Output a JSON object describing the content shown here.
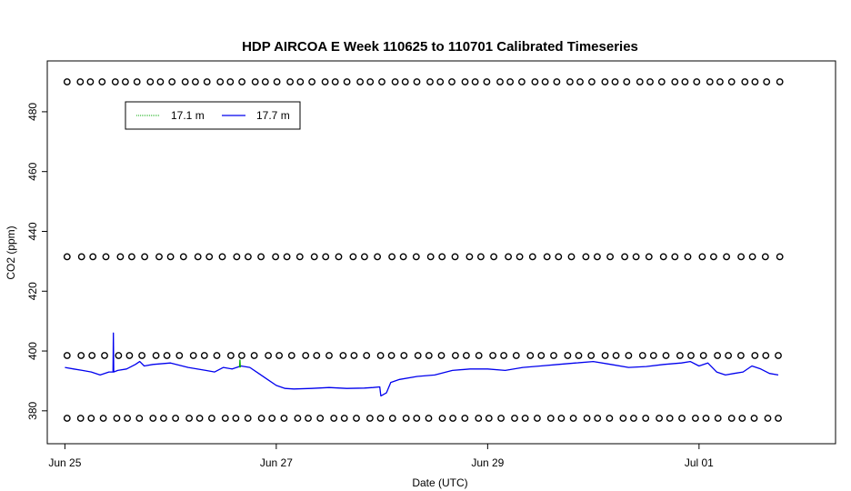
{
  "chart_data": {
    "type": "line",
    "title": "HDP AIRCOA E  Week 110625 to 110701  Calibrated Timeseries",
    "xlabel": "Date (UTC)",
    "ylabel": "CO2 (ppm)",
    "x_ticks": [
      {
        "value": "2011-06-25",
        "label": "Jun 25"
      },
      {
        "value": "2011-06-27",
        "label": "Jun 27"
      },
      {
        "value": "2011-06-29",
        "label": "Jun 29"
      },
      {
        "value": "2011-07-01",
        "label": "Jul 01"
      }
    ],
    "xlim": [
      "2011-06-24 20:00",
      "2011-07-02 07:00"
    ],
    "y_ticks": [
      380,
      400,
      420,
      440,
      460,
      480
    ],
    "ylim": [
      369,
      497
    ],
    "grid": false,
    "legend": {
      "position": "top-left",
      "entries": [
        {
          "name": "17.1 m",
          "color": "#00aa00"
        },
        {
          "name": "17.7 m",
          "color": "#0000ee"
        }
      ]
    },
    "series": [
      {
        "name": "17.7 m",
        "color": "#0000ee",
        "points": [
          [
            "2011-06-25 00:00",
            394.5
          ],
          [
            "2011-06-25 02:00",
            394.0
          ],
          [
            "2011-06-25 04:00",
            393.5
          ],
          [
            "2011-06-25 06:00",
            393.0
          ],
          [
            "2011-06-25 08:00",
            392.0
          ],
          [
            "2011-06-25 09:00",
            392.5
          ],
          [
            "2011-06-25 10:00",
            393.0
          ],
          [
            "2011-06-25 10:55",
            393.0
          ],
          [
            "2011-06-25 11:00",
            406.0
          ],
          [
            "2011-06-25 11:05",
            393.0
          ],
          [
            "2011-06-25 12:00",
            393.5
          ],
          [
            "2011-06-25 14:00",
            394.0
          ],
          [
            "2011-06-25 16:00",
            395.5
          ],
          [
            "2011-06-25 17:00",
            396.5
          ],
          [
            "2011-06-25 18:00",
            395.0
          ],
          [
            "2011-06-25 20:00",
            395.5
          ],
          [
            "2011-06-26 00:00",
            396.0
          ],
          [
            "2011-06-26 04:00",
            394.5
          ],
          [
            "2011-06-26 08:00",
            393.5
          ],
          [
            "2011-06-26 10:00",
            393.0
          ],
          [
            "2011-06-26 12:00",
            394.5
          ],
          [
            "2011-06-26 14:00",
            394.0
          ],
          [
            "2011-06-26 16:00",
            395.0
          ],
          [
            "2011-06-26 18:00",
            394.5
          ],
          [
            "2011-06-26 20:00",
            392.5
          ],
          [
            "2011-06-26 22:00",
            390.5
          ],
          [
            "2011-06-27 00:00",
            388.5
          ],
          [
            "2011-06-27 02:00",
            387.5
          ],
          [
            "2011-06-27 04:00",
            387.3
          ],
          [
            "2011-06-27 08:00",
            387.5
          ],
          [
            "2011-06-27 12:00",
            387.8
          ],
          [
            "2011-06-27 16:00",
            387.5
          ],
          [
            "2011-06-27 20:00",
            387.6
          ],
          [
            "2011-06-27 22:00",
            387.8
          ],
          [
            "2011-06-27 23:30",
            388.0
          ],
          [
            "2011-06-27 23:45",
            385.0
          ],
          [
            "2011-06-28 01:00",
            386.0
          ],
          [
            "2011-06-28 02:00",
            389.5
          ],
          [
            "2011-06-28 04:00",
            390.5
          ],
          [
            "2011-06-28 08:00",
            391.5
          ],
          [
            "2011-06-28 12:00",
            392.0
          ],
          [
            "2011-06-28 16:00",
            393.5
          ],
          [
            "2011-06-28 20:00",
            394.0
          ],
          [
            "2011-06-29 00:00",
            394.0
          ],
          [
            "2011-06-29 04:00",
            393.5
          ],
          [
            "2011-06-29 08:00",
            394.5
          ],
          [
            "2011-06-29 12:00",
            395.0
          ],
          [
            "2011-06-29 16:00",
            395.5
          ],
          [
            "2011-06-29 20:00",
            396.0
          ],
          [
            "2011-06-30 00:00",
            396.5
          ],
          [
            "2011-06-30 04:00",
            395.5
          ],
          [
            "2011-06-30 08:00",
            394.5
          ],
          [
            "2011-06-30 12:00",
            394.8
          ],
          [
            "2011-06-30 16:00",
            395.5
          ],
          [
            "2011-06-30 20:00",
            396.0
          ],
          [
            "2011-06-30 22:00",
            396.5
          ],
          [
            "2011-07-01 00:00",
            395.0
          ],
          [
            "2011-07-01 02:00",
            396.0
          ],
          [
            "2011-07-01 04:00",
            393.0
          ],
          [
            "2011-07-01 06:00",
            392.0
          ],
          [
            "2011-07-01 08:00",
            392.5
          ],
          [
            "2011-07-01 10:00",
            393.0
          ],
          [
            "2011-07-01 12:00",
            395.0
          ],
          [
            "2011-07-01 14:00",
            394.0
          ],
          [
            "2011-07-01 16:00",
            392.5
          ],
          [
            "2011-07-01 18:00",
            392.0
          ]
        ]
      },
      {
        "name": "17.1 m",
        "color": "#00aa00",
        "points": [
          [
            "2011-06-26 15:40",
            394.5
          ],
          [
            "2011-06-26 15:45",
            397.0
          ],
          [
            "2011-06-26 15:50",
            394.5
          ]
        ]
      }
    ],
    "reference_points": {
      "marker": "open-circle",
      "x_start": "2011-06-25 00:30",
      "x_end": "2011-07-01 18:00",
      "levels": [
        {
          "y": 490.0,
          "count": 62
        },
        {
          "y": 431.5,
          "count": 56
        },
        {
          "y": 398.5,
          "count": 58
        },
        {
          "y": 377.5,
          "count": 60
        }
      ]
    }
  }
}
